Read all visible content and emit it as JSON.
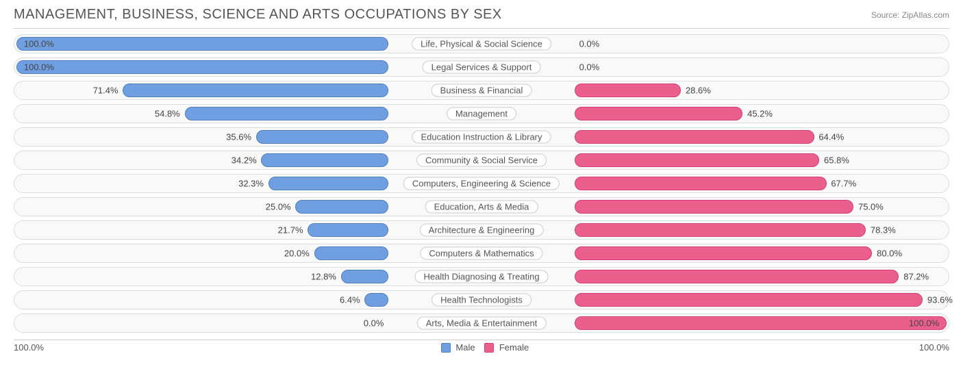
{
  "header": {
    "title": "MANAGEMENT, BUSINESS, SCIENCE AND ARTS OCCUPATIONS BY SEX",
    "source_label": "Source:",
    "source_name": "ZipAtlas.com"
  },
  "chart": {
    "type": "diverging-bar",
    "half_width_pct": 50,
    "pill_half_width_pct": 10,
    "colors": {
      "male_fill": "#6f9fe0",
      "male_border": "#4f7fc0",
      "female_fill": "#ea5f8b",
      "female_border": "#d04070",
      "row_bg": "#f9f9f9",
      "row_border": "#dddddd",
      "text": "#444444",
      "background": "#ffffff"
    },
    "rows": [
      {
        "category": "Life, Physical & Social Science",
        "male": 100.0,
        "female": 0.0,
        "male_label": "100.0%",
        "female_label": "0.0%"
      },
      {
        "category": "Legal Services & Support",
        "male": 100.0,
        "female": 0.0,
        "male_label": "100.0%",
        "female_label": "0.0%"
      },
      {
        "category": "Business & Financial",
        "male": 71.4,
        "female": 28.6,
        "male_label": "71.4%",
        "female_label": "28.6%"
      },
      {
        "category": "Management",
        "male": 54.8,
        "female": 45.2,
        "male_label": "54.8%",
        "female_label": "45.2%"
      },
      {
        "category": "Education Instruction & Library",
        "male": 35.6,
        "female": 64.4,
        "male_label": "35.6%",
        "female_label": "64.4%"
      },
      {
        "category": "Community & Social Service",
        "male": 34.2,
        "female": 65.8,
        "male_label": "34.2%",
        "female_label": "65.8%"
      },
      {
        "category": "Computers, Engineering & Science",
        "male": 32.3,
        "female": 67.7,
        "male_label": "32.3%",
        "female_label": "67.7%"
      },
      {
        "category": "Education, Arts & Media",
        "male": 25.0,
        "female": 75.0,
        "male_label": "25.0%",
        "female_label": "75.0%"
      },
      {
        "category": "Architecture & Engineering",
        "male": 21.7,
        "female": 78.3,
        "male_label": "21.7%",
        "female_label": "78.3%"
      },
      {
        "category": "Computers & Mathematics",
        "male": 20.0,
        "female": 80.0,
        "male_label": "20.0%",
        "female_label": "80.0%"
      },
      {
        "category": "Health Diagnosing & Treating",
        "male": 12.8,
        "female": 87.2,
        "male_label": "12.8%",
        "female_label": "87.2%"
      },
      {
        "category": "Health Technologists",
        "male": 6.4,
        "female": 93.6,
        "male_label": "6.4%",
        "female_label": "93.6%"
      },
      {
        "category": "Arts, Media & Entertainment",
        "male": 0.0,
        "female": 100.0,
        "male_label": "0.0%",
        "female_label": "100.0%"
      }
    ]
  },
  "legend": {
    "male": "Male",
    "female": "Female"
  },
  "axis": {
    "left": "100.0%",
    "right": "100.0%"
  }
}
